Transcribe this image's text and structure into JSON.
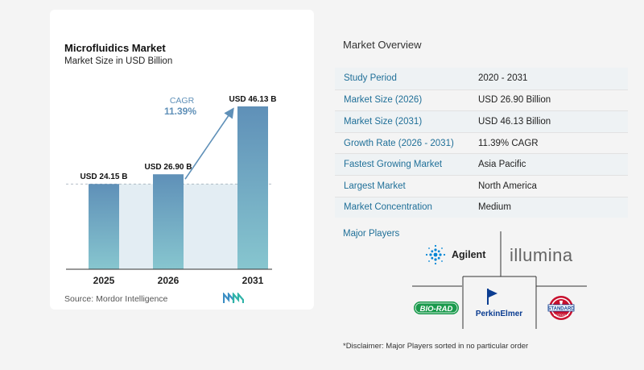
{
  "chart_data": {
    "type": "bar",
    "title": "Microfluidics Market",
    "subtitle": "Market Size in USD Billion",
    "categories": [
      "2025",
      "2026",
      "2031"
    ],
    "values": [
      24.15,
      26.9,
      46.13
    ],
    "data_labels": [
      "USD 24.15 B",
      "USD 26.90 B",
      "USD 46.13 B"
    ],
    "cagr_label": "CAGR",
    "cagr_value": "11.39%",
    "ylim": [
      0,
      46.13
    ],
    "grid": false,
    "colors": {
      "bar_top": "#5f90b8",
      "bar_bottom": "#87c6cf",
      "band": "#e3edf3",
      "arrow": "#5f90b8",
      "cagr": "#5f90b8"
    }
  },
  "source": "Source:  Mordor Intelligence",
  "overview": {
    "title": "Market Overview",
    "rows": [
      {
        "label": "Study Period",
        "value": "2020 - 2031"
      },
      {
        "label": "Market Size (2026)",
        "value": "USD 26.90 Billion"
      },
      {
        "label": "Market Size (2031)",
        "value": "USD 46.13 Billion"
      },
      {
        "label": "Growth Rate (2026 - 2031)",
        "value": "11.39% CAGR"
      },
      {
        "label": "Fastest Growing Market",
        "value": "Asia Pacific"
      },
      {
        "label": "Largest Market",
        "value": "North America"
      },
      {
        "label": "Market Concentration",
        "value": "Medium"
      }
    ]
  },
  "players": {
    "title": "Major Players",
    "logos": [
      {
        "name": "Agilent",
        "icon": "agilent-spark-icon",
        "color": "#0085d5"
      },
      {
        "name": "illumina",
        "icon": "illumina-wordmark",
        "color": "#666666"
      },
      {
        "name": "BIO-RAD",
        "icon": "biorad-badge",
        "color": "#1a9a4c"
      },
      {
        "name": "PerkinElmer",
        "icon": "perkinelmer-flag-icon",
        "color": "#0b3d91"
      },
      {
        "name": "STANDARD",
        "subtext": "BIOTOOLS",
        "icon": "standard-biotools-seal",
        "color": "#c8102e"
      }
    ]
  },
  "disclaimer": "*Disclaimer: Major Players sorted in no particular order"
}
